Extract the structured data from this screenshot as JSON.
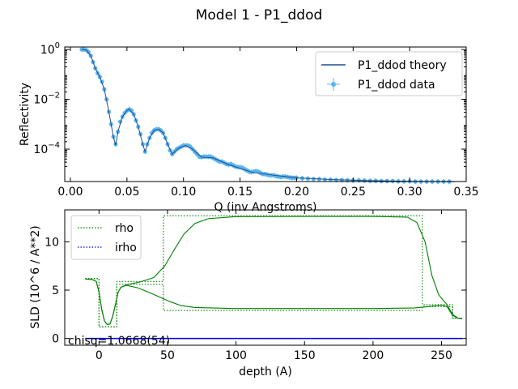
{
  "figure": {
    "title": "Model 1 - P1_ddod"
  },
  "chart_data": [
    {
      "type": "scatter",
      "xlabel": "Q (inv Angstroms)",
      "ylabel": "Reflectivity",
      "yscale": "log",
      "xlim": [
        -0.005,
        0.35
      ],
      "ylim_exp": [
        -5.3,
        0.1
      ],
      "xticks": [
        0.0,
        0.05,
        0.1,
        0.15,
        0.2,
        0.25,
        0.3,
        0.35
      ],
      "xtick_labels": [
        "0.00",
        "0.05",
        "0.10",
        "0.15",
        "0.20",
        "0.25",
        "0.30",
        "0.35"
      ],
      "yticks_exp": [
        0,
        -2,
        -4
      ],
      "ytick_labels": {
        "base": "10",
        "exps": [
          "0",
          "−2",
          "−4"
        ]
      },
      "legend": {
        "position": "top-right",
        "theory_label": "P1_ddod theory",
        "data_label": "P1_ddod data"
      },
      "colors": {
        "theory": "#1f4e8c",
        "data": "#5ab4f0"
      },
      "series": [
        {
          "name": "P1_ddod data",
          "points": [
            [
              0.01,
              0.0
            ],
            [
              0.012,
              0.0
            ],
            [
              0.014,
              -0.02
            ],
            [
              0.016,
              -0.1
            ],
            [
              0.018,
              -0.25
            ],
            [
              0.02,
              -0.5
            ],
            [
              0.022,
              -0.75
            ],
            [
              0.024,
              -0.95
            ],
            [
              0.026,
              -1.1
            ],
            [
              0.028,
              -1.3
            ],
            [
              0.03,
              -1.6
            ],
            [
              0.032,
              -2.0
            ],
            [
              0.034,
              -2.5
            ],
            [
              0.036,
              -3.0
            ],
            [
              0.038,
              -3.5
            ],
            [
              0.04,
              -3.8
            ],
            [
              0.042,
              -3.3
            ],
            [
              0.044,
              -2.9
            ],
            [
              0.046,
              -2.7
            ],
            [
              0.048,
              -2.55
            ],
            [
              0.05,
              -2.45
            ],
            [
              0.052,
              -2.4
            ],
            [
              0.054,
              -2.45
            ],
            [
              0.056,
              -2.6
            ],
            [
              0.058,
              -2.85
            ],
            [
              0.06,
              -3.1
            ],
            [
              0.062,
              -3.4
            ],
            [
              0.064,
              -3.8
            ],
            [
              0.066,
              -4.1
            ],
            [
              0.068,
              -3.8
            ],
            [
              0.07,
              -3.55
            ],
            [
              0.072,
              -3.35
            ],
            [
              0.074,
              -3.25
            ],
            [
              0.076,
              -3.2
            ],
            [
              0.078,
              -3.2
            ],
            [
              0.08,
              -3.25
            ],
            [
              0.082,
              -3.35
            ],
            [
              0.084,
              -3.55
            ],
            [
              0.086,
              -3.8
            ],
            [
              0.088,
              -4.05
            ],
            [
              0.09,
              -4.2
            ],
            [
              0.092,
              -4.1
            ],
            [
              0.094,
              -4.0
            ],
            [
              0.096,
              -3.95
            ],
            [
              0.098,
              -3.9
            ],
            [
              0.1,
              -3.85
            ],
            [
              0.102,
              -3.85
            ],
            [
              0.104,
              -3.85
            ],
            [
              0.106,
              -3.9
            ],
            [
              0.108,
              -4.0
            ],
            [
              0.11,
              -4.1
            ],
            [
              0.112,
              -4.2
            ],
            [
              0.114,
              -4.3
            ],
            [
              0.116,
              -4.32
            ],
            [
              0.118,
              -4.3
            ],
            [
              0.12,
              -4.3
            ],
            [
              0.122,
              -4.3
            ],
            [
              0.124,
              -4.3
            ],
            [
              0.126,
              -4.35
            ],
            [
              0.128,
              -4.4
            ],
            [
              0.13,
              -4.45
            ],
            [
              0.132,
              -4.5
            ],
            [
              0.134,
              -4.5
            ],
            [
              0.136,
              -4.55
            ],
            [
              0.138,
              -4.6
            ],
            [
              0.14,
              -4.62
            ],
            [
              0.142,
              -4.6
            ],
            [
              0.144,
              -4.65
            ],
            [
              0.146,
              -4.7
            ],
            [
              0.148,
              -4.72
            ],
            [
              0.15,
              -4.72
            ],
            [
              0.152,
              -4.75
            ],
            [
              0.154,
              -4.8
            ],
            [
              0.156,
              -4.85
            ],
            [
              0.158,
              -4.9
            ],
            [
              0.16,
              -4.92
            ],
            [
              0.162,
              -4.9
            ],
            [
              0.164,
              -4.88
            ],
            [
              0.166,
              -4.9
            ],
            [
              0.168,
              -4.95
            ],
            [
              0.17,
              -5.0
            ],
            [
              0.172,
              -5.0
            ],
            [
              0.174,
              -5.02
            ],
            [
              0.176,
              -5.05
            ],
            [
              0.178,
              -5.05
            ],
            [
              0.18,
              -5.05
            ],
            [
              0.182,
              -5.08
            ],
            [
              0.184,
              -5.1
            ],
            [
              0.186,
              -5.12
            ],
            [
              0.188,
              -5.1
            ],
            [
              0.19,
              -5.1
            ],
            [
              0.192,
              -5.12
            ],
            [
              0.194,
              -5.14
            ],
            [
              0.196,
              -5.15
            ],
            [
              0.198,
              -5.15
            ],
            [
              0.2,
              -5.15
            ],
            [
              0.205,
              -5.17
            ],
            [
              0.21,
              -5.18
            ],
            [
              0.215,
              -5.2
            ],
            [
              0.22,
              -5.2
            ],
            [
              0.225,
              -5.22
            ],
            [
              0.23,
              -5.22
            ],
            [
              0.235,
              -5.24
            ],
            [
              0.24,
              -5.24
            ],
            [
              0.245,
              -5.25
            ],
            [
              0.25,
              -5.26
            ],
            [
              0.255,
              -5.25
            ],
            [
              0.26,
              -5.26
            ],
            [
              0.265,
              -5.27
            ],
            [
              0.27,
              -5.27
            ],
            [
              0.275,
              -5.28
            ],
            [
              0.28,
              -5.28
            ],
            [
              0.285,
              -5.28
            ],
            [
              0.29,
              -5.29
            ],
            [
              0.295,
              -5.29
            ],
            [
              0.3,
              -5.29
            ],
            [
              0.305,
              -5.3
            ],
            [
              0.31,
              -5.3
            ],
            [
              0.315,
              -5.3
            ],
            [
              0.32,
              -5.3
            ],
            [
              0.325,
              -5.3
            ],
            [
              0.33,
              -5.3
            ],
            [
              0.335,
              -5.3
            ]
          ]
        },
        {
          "name": "P1_ddod theory",
          "points": [
            [
              0.01,
              0.0
            ],
            [
              0.014,
              -0.02
            ],
            [
              0.018,
              -0.25
            ],
            [
              0.022,
              -0.75
            ],
            [
              0.026,
              -1.1
            ],
            [
              0.03,
              -1.6
            ],
            [
              0.034,
              -2.5
            ],
            [
              0.038,
              -3.5
            ],
            [
              0.04,
              -3.85
            ],
            [
              0.042,
              -3.3
            ],
            [
              0.046,
              -2.7
            ],
            [
              0.05,
              -2.45
            ],
            [
              0.052,
              -2.4
            ],
            [
              0.056,
              -2.6
            ],
            [
              0.06,
              -3.1
            ],
            [
              0.064,
              -3.8
            ],
            [
              0.066,
              -4.1
            ],
            [
              0.07,
              -3.55
            ],
            [
              0.074,
              -3.25
            ],
            [
              0.078,
              -3.2
            ],
            [
              0.082,
              -3.35
            ],
            [
              0.086,
              -3.8
            ],
            [
              0.09,
              -4.2
            ],
            [
              0.096,
              -3.95
            ],
            [
              0.102,
              -3.85
            ],
            [
              0.108,
              -4.0
            ],
            [
              0.116,
              -4.32
            ],
            [
              0.126,
              -4.35
            ],
            [
              0.14,
              -4.62
            ],
            [
              0.16,
              -4.92
            ],
            [
              0.18,
              -5.05
            ],
            [
              0.2,
              -5.15
            ],
            [
              0.23,
              -5.22
            ],
            [
              0.26,
              -5.26
            ],
            [
              0.3,
              -5.29
            ],
            [
              0.34,
              -5.31
            ]
          ]
        }
      ]
    },
    {
      "type": "line",
      "xlabel": "depth (A)",
      "ylabel": "SLD (10^6 / A**2)",
      "xlim": [
        -25,
        268
      ],
      "ylim": [
        -0.7,
        13.3
      ],
      "xticks": [
        0,
        50,
        100,
        150,
        200,
        250
      ],
      "xtick_labels": [
        "0",
        "50",
        "100",
        "150",
        "200",
        "250"
      ],
      "yticks": [
        0,
        5,
        10
      ],
      "ytick_labels": [
        "0",
        "5",
        "10"
      ],
      "legend": {
        "position": "top-left",
        "rho_label": "rho",
        "irho_label": "irho"
      },
      "annotation": "chisq=1.0668(54)",
      "colors": {
        "rho": "#008000",
        "irho": "#0000ff"
      },
      "series": [
        {
          "name": "rho",
          "points": [
            [
              -10,
              6.15
            ],
            [
              -5,
              6.1
            ],
            [
              -2,
              5.9
            ],
            [
              0,
              4.8
            ],
            [
              2,
              3.0
            ],
            [
              4,
              1.8
            ],
            [
              6,
              1.45
            ],
            [
              8,
              1.5
            ],
            [
              10,
              2.3
            ],
            [
              12,
              3.5
            ],
            [
              14,
              4.8
            ],
            [
              16,
              5.3
            ],
            [
              20,
              5.55
            ],
            [
              30,
              5.85
            ],
            [
              40,
              6.3
            ],
            [
              48,
              7.5
            ],
            [
              55,
              9.2
            ],
            [
              62,
              10.8
            ],
            [
              70,
              11.9
            ],
            [
              80,
              12.4
            ],
            [
              100,
              12.6
            ],
            [
              150,
              12.62
            ],
            [
              200,
              12.62
            ],
            [
              225,
              12.55
            ],
            [
              232,
              12.0
            ],
            [
              238,
              10.0
            ],
            [
              243,
              6.5
            ],
            [
              248,
              4.5
            ],
            [
              254,
              3.5
            ],
            [
              258,
              2.5
            ],
            [
              262,
              2.1
            ],
            [
              265,
              2.05
            ]
          ]
        },
        {
          "name": "rho",
          "points": [
            [
              -10,
              6.15
            ],
            [
              -5,
              6.1
            ],
            [
              -2,
              5.9
            ],
            [
              0,
              4.8
            ],
            [
              2,
              3.0
            ],
            [
              4,
              1.8
            ],
            [
              6,
              1.45
            ],
            [
              8,
              1.5
            ],
            [
              10,
              2.3
            ],
            [
              12,
              3.5
            ],
            [
              14,
              4.8
            ],
            [
              16,
              5.3
            ],
            [
              20,
              5.5
            ],
            [
              28,
              5.25
            ],
            [
              36,
              4.8
            ],
            [
              44,
              4.3
            ],
            [
              52,
              3.8
            ],
            [
              60,
              3.4
            ],
            [
              70,
              3.2
            ],
            [
              100,
              3.1
            ],
            [
              150,
              3.1
            ],
            [
              200,
              3.1
            ],
            [
              230,
              3.15
            ],
            [
              240,
              3.3
            ],
            [
              250,
              3.45
            ],
            [
              254,
              3.3
            ],
            [
              258,
              2.4
            ],
            [
              262,
              2.1
            ],
            [
              265,
              2.05
            ]
          ]
        },
        {
          "name": "rho",
          "style": "dotted",
          "points": [
            [
              -10,
              6.2
            ],
            [
              0,
              6.2
            ],
            [
              0,
              1.2
            ],
            [
              13,
              1.2
            ],
            [
              13,
              5.9
            ],
            [
              47,
              5.9
            ],
            [
              47,
              12.7
            ],
            [
              236,
              12.7
            ],
            [
              236,
              3.5
            ],
            [
              258,
              3.5
            ],
            [
              258,
              2.1
            ],
            [
              265,
              2.1
            ]
          ]
        },
        {
          "name": "rho",
          "style": "dotted",
          "points": [
            [
              -10,
              6.2
            ],
            [
              0,
              6.2
            ],
            [
              0,
              1.2
            ],
            [
              13,
              1.2
            ],
            [
              13,
              5.6
            ],
            [
              47,
              5.6
            ],
            [
              47,
              2.9
            ],
            [
              236,
              2.9
            ],
            [
              236,
              3.3
            ],
            [
              258,
              3.3
            ],
            [
              258,
              2.1
            ],
            [
              265,
              2.1
            ]
          ]
        },
        {
          "name": "irho",
          "points": [
            [
              -10,
              0.0
            ],
            [
              265,
              0.0
            ]
          ]
        },
        {
          "name": "irho",
          "style": "dotted",
          "points": [
            [
              -10,
              0.0
            ],
            [
              265,
              0.0
            ]
          ]
        }
      ]
    }
  ]
}
